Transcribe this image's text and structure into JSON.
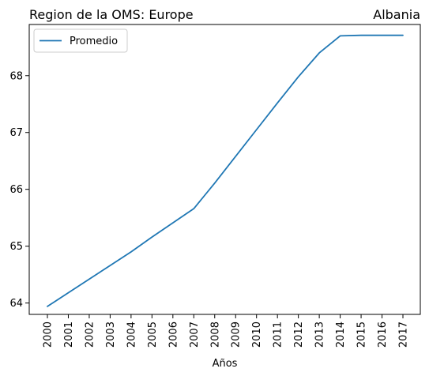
{
  "chart_data": {
    "type": "line",
    "title_left": "Region de la OMS: Europe",
    "title_right": "Albania",
    "xlabel": "Años",
    "ylabel": "",
    "x": [
      "2000",
      "2001",
      "2002",
      "2003",
      "2004",
      "2005",
      "2006",
      "2007",
      "2008",
      "2009",
      "2010",
      "2011",
      "2012",
      "2013",
      "2014",
      "2015",
      "2016",
      "2017"
    ],
    "series": [
      {
        "name": "Promedio",
        "color": "#1f77b4",
        "values": [
          63.94,
          64.18,
          64.42,
          64.66,
          64.9,
          65.16,
          65.41,
          65.66,
          66.11,
          66.58,
          67.05,
          67.52,
          67.98,
          68.4,
          68.7,
          68.71,
          68.71,
          68.71
        ]
      }
    ],
    "yticks": [
      64,
      65,
      66,
      67,
      68
    ],
    "ylim": [
      63.8,
      68.9
    ],
    "grid": false,
    "legend_position": "top-left"
  }
}
